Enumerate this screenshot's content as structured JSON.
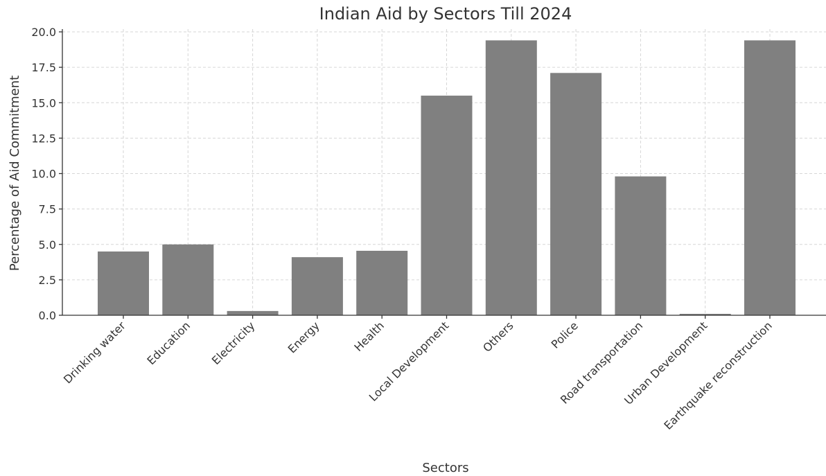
{
  "chart_data": {
    "type": "bar",
    "title": "Indian Aid by Sectors Till 2024",
    "xlabel": "Sectors",
    "ylabel": "Percentage of Aid Commitment",
    "categories": [
      "Drinking water",
      "Education",
      "Electricity",
      "Energy",
      "Health",
      "Local Development",
      "Others",
      "Police",
      "Road transportation",
      "Urban Development",
      "Earthquake reconstruction"
    ],
    "values": [
      4.5,
      5.0,
      0.3,
      4.1,
      4.55,
      15.5,
      19.4,
      17.1,
      9.8,
      0.1,
      19.4
    ],
    "ylim": [
      0,
      20
    ],
    "yticks": [
      "0.0",
      "2.5",
      "5.0",
      "7.5",
      "10.0",
      "12.5",
      "15.0",
      "17.5",
      "20.0"
    ],
    "grid": true,
    "bar_color": "#808080"
  }
}
